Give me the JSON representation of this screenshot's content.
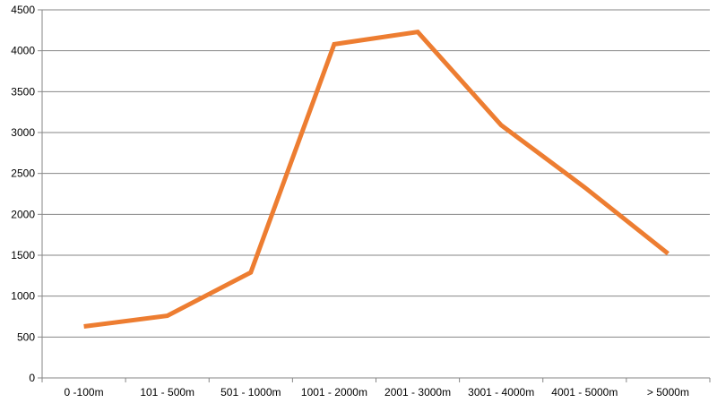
{
  "chart_data": {
    "type": "line",
    "title": "",
    "xlabel": "",
    "ylabel": "",
    "categories": [
      "0 -100m",
      "101 - 500m",
      "501 - 1000m",
      "1001 - 2000m",
      "2001 - 3000m",
      "3001 - 4000m",
      "4001 - 5000m",
      "> 5000m"
    ],
    "series": [
      {
        "values": [
          630,
          760,
          1290,
          4080,
          4230,
          3090,
          2330,
          1520
        ],
        "color": "#ED7D31"
      }
    ],
    "ylim": [
      0,
      4500
    ],
    "yticks": [
      "0",
      "500",
      "1000",
      "1500",
      "2000",
      "2500",
      "3000",
      "3500",
      "4000",
      "4500"
    ],
    "grid": true,
    "legend": "none"
  }
}
